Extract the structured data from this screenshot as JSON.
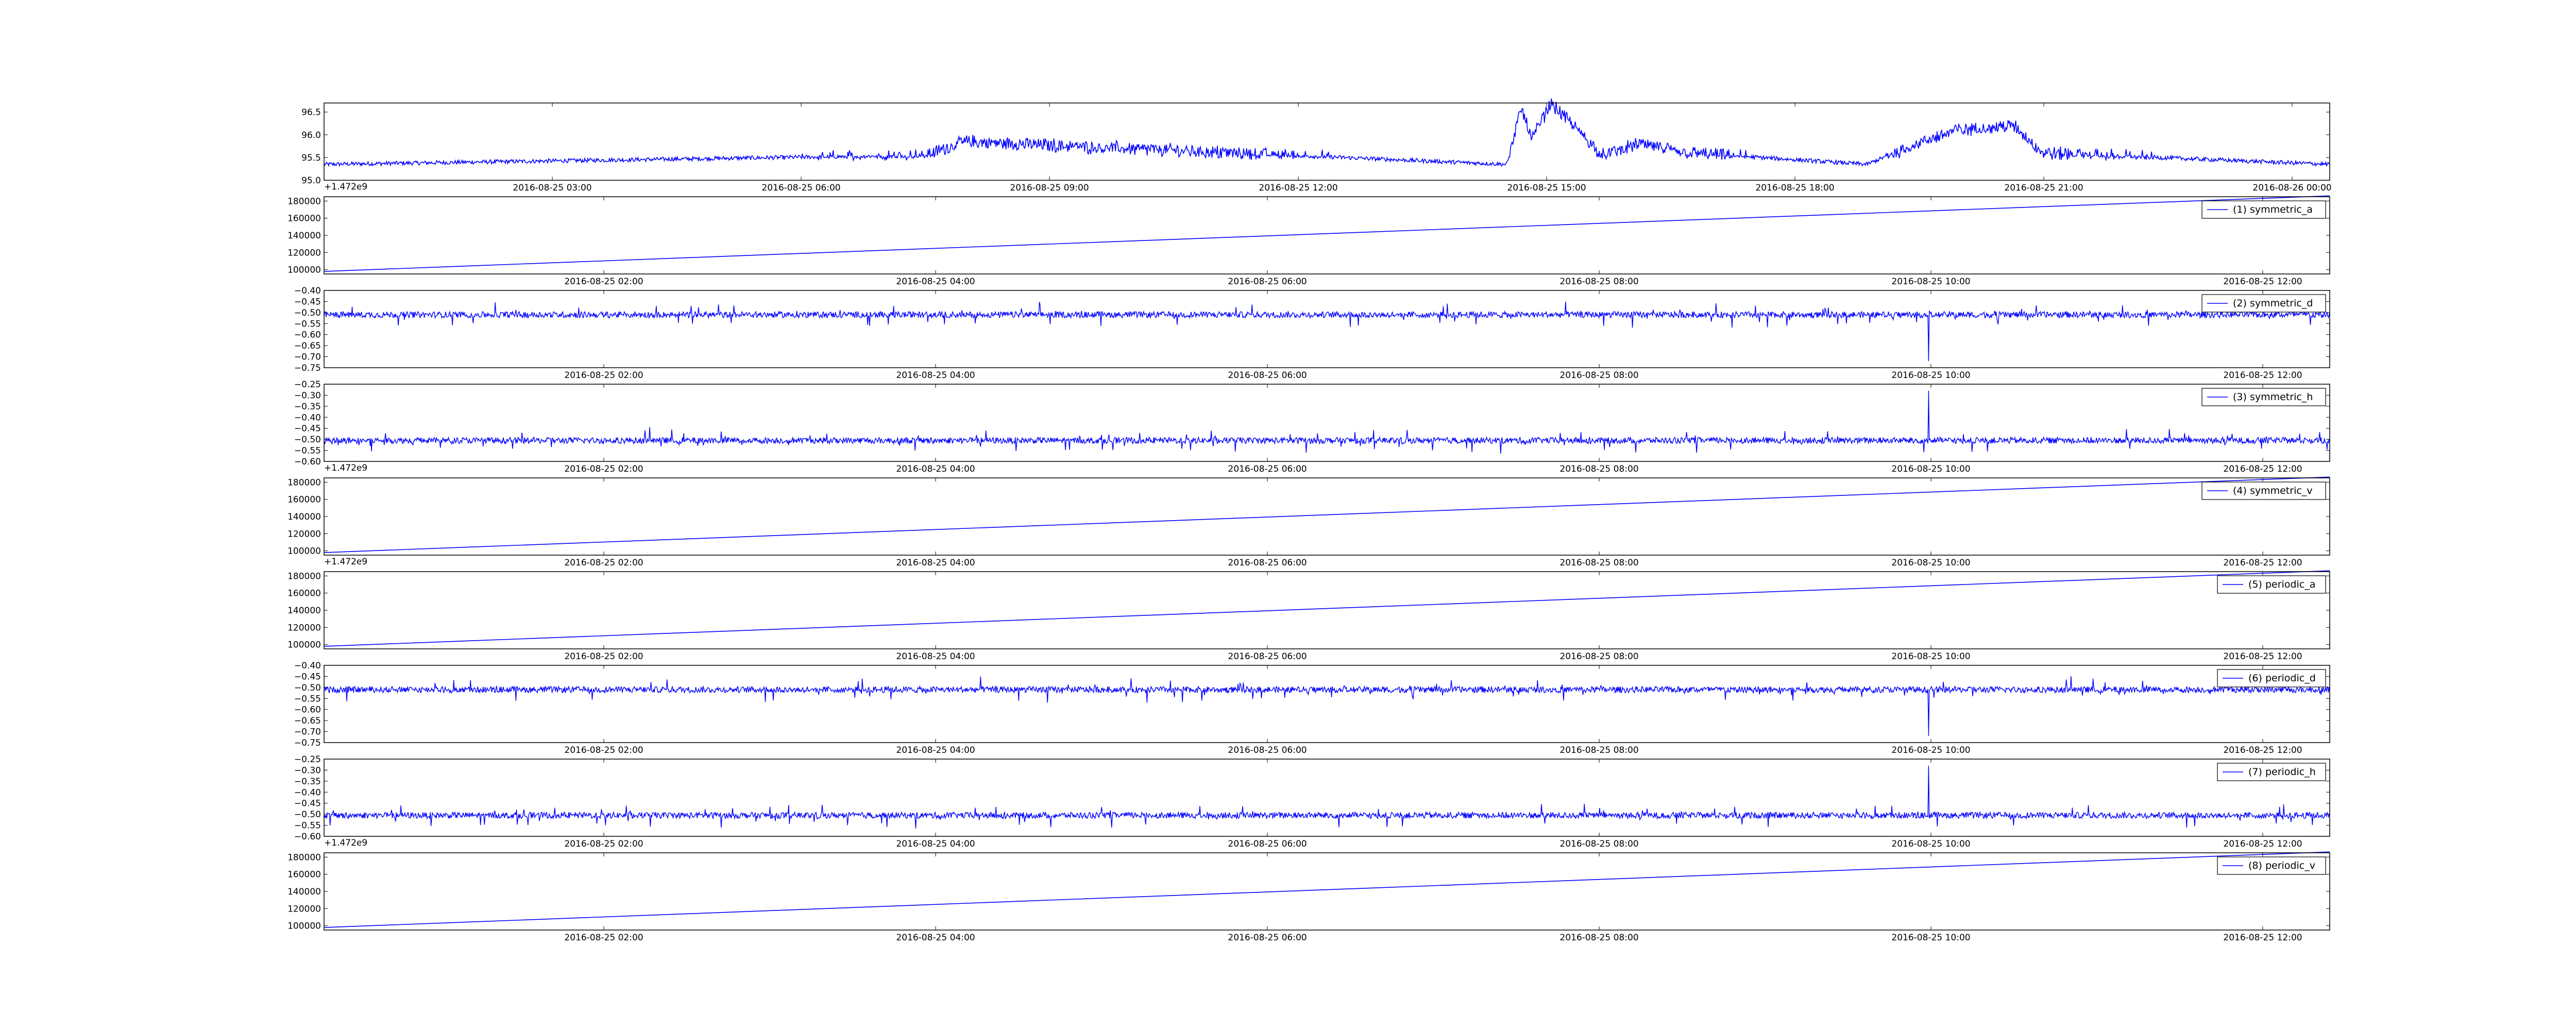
{
  "chart_data": [
    {
      "type": "line",
      "title": "",
      "xlabel": "",
      "ylabel": "",
      "ylim": [
        95.0,
        96.7
      ],
      "yticks": [
        "95.0",
        "95.5",
        "96.0",
        "96.5"
      ],
      "xticks": [
        "2016-08-25 03:00",
        "2016-08-25 06:00",
        "2016-08-25 09:00",
        "2016-08-25 12:00",
        "2016-08-25 15:00",
        "2016-08-25 18:00",
        "2016-08-25 21:00",
        "2016-08-26 00:00"
      ],
      "offset_text": "+1.472e9",
      "legend": "",
      "series": [
        {
          "color": "#0000ff",
          "baseline": 95.35,
          "x": [
            "2016-08-25 01:30",
            "2016-08-25 08:20",
            "2016-08-25 08:45",
            "2016-08-25 14:55",
            "2016-08-25 15:05",
            "2016-08-25 15:12",
            "2016-08-25 15:25",
            "2016-08-25 16:00",
            "2016-08-25 16:25",
            "2016-08-25 17:00",
            "2016-08-25 19:00",
            "2016-08-25 19:30",
            "2016-08-25 20:00",
            "2016-08-25 20:40",
            "2016-08-25 21:00",
            "2016-08-26 00:15"
          ],
          "values": [
            95.35,
            95.55,
            95.85,
            95.35,
            96.6,
            95.9,
            96.7,
            95.55,
            95.8,
            95.6,
            95.35,
            95.75,
            96.1,
            96.2,
            95.6,
            95.35
          ]
        }
      ]
    },
    {
      "type": "line",
      "ylim": [
        95000,
        185000
      ],
      "yticks": [
        "100000",
        "120000",
        "140000",
        "160000",
        "180000"
      ],
      "xticks": [
        "2016-08-25 02:00",
        "2016-08-25 04:00",
        "2016-08-25 06:00",
        "2016-08-25 08:00",
        "2016-08-25 10:00",
        "2016-08-25 12:00"
      ],
      "offset_text": "",
      "legend": "(1) symmetric_a",
      "legend_placement": "top-right",
      "series": [
        {
          "name": "(1) symmetric_a",
          "color": "#0000ff",
          "x": [
            "start",
            "end"
          ],
          "values": [
            98000,
            186000
          ]
        }
      ]
    },
    {
      "type": "line",
      "ylim": [
        -0.75,
        -0.4
      ],
      "yticks": [
        "−0.40",
        "−0.45",
        "−0.50",
        "−0.55",
        "−0.60",
        "−0.65",
        "−0.70",
        "−0.75"
      ],
      "xticks": [
        "2016-08-25 02:00",
        "2016-08-25 04:00",
        "2016-08-25 06:00",
        "2016-08-25 08:00",
        "2016-08-25 10:00",
        "2016-08-25 12:00"
      ],
      "offset_text": "",
      "legend": "(2) symmetric_d",
      "legend_placement": "top-right",
      "series": [
        {
          "name": "(2) symmetric_d",
          "color": "#0000ff",
          "baseline": -0.51,
          "spike_x": "2016-08-25 10:00",
          "spike_value": -0.72
        }
      ]
    },
    {
      "type": "line",
      "ylim": [
        -0.6,
        -0.25
      ],
      "yticks": [
        "−0.25",
        "−0.30",
        "−0.35",
        "−0.40",
        "−0.45",
        "−0.50",
        "−0.55",
        "−0.60"
      ],
      "xticks": [
        "2016-08-25 02:00",
        "2016-08-25 04:00",
        "2016-08-25 06:00",
        "2016-08-25 08:00",
        "2016-08-25 10:00",
        "2016-08-25 12:00"
      ],
      "offset_text": "+1.472e9",
      "legend": "(3) symmetric_h",
      "legend_placement": "top-right",
      "series": [
        {
          "name": "(3) symmetric_h",
          "color": "#0000ff",
          "baseline": -0.505,
          "spike_x": "2016-08-25 10:00",
          "spike_value": -0.28
        }
      ]
    },
    {
      "type": "line",
      "ylim": [
        95000,
        185000
      ],
      "yticks": [
        "100000",
        "120000",
        "140000",
        "160000",
        "180000"
      ],
      "xticks": [
        "2016-08-25 02:00",
        "2016-08-25 04:00",
        "2016-08-25 06:00",
        "2016-08-25 08:00",
        "2016-08-25 10:00",
        "2016-08-25 12:00"
      ],
      "offset_text": "+1.472e9",
      "legend": "(4) symmetric_v",
      "legend_placement": "top-right",
      "series": [
        {
          "name": "(4) symmetric_v",
          "color": "#0000ff",
          "x": [
            "start",
            "end"
          ],
          "values": [
            98000,
            186000
          ]
        }
      ]
    },
    {
      "type": "line",
      "ylim": [
        95000,
        185000
      ],
      "yticks": [
        "100000",
        "120000",
        "140000",
        "160000",
        "180000"
      ],
      "xticks": [
        "2016-08-25 02:00",
        "2016-08-25 04:00",
        "2016-08-25 06:00",
        "2016-08-25 08:00",
        "2016-08-25 10:00",
        "2016-08-25 12:00"
      ],
      "offset_text": "",
      "legend": "(5) periodic_a",
      "legend_placement": "top-right",
      "series": [
        {
          "name": "(5) periodic_a",
          "color": "#0000ff",
          "x": [
            "start",
            "end"
          ],
          "values": [
            98000,
            186000
          ]
        }
      ]
    },
    {
      "type": "line",
      "ylim": [
        -0.75,
        -0.4
      ],
      "yticks": [
        "−0.40",
        "−0.45",
        "−0.50",
        "−0.55",
        "−0.60",
        "−0.65",
        "−0.70",
        "−0.75"
      ],
      "xticks": [
        "2016-08-25 02:00",
        "2016-08-25 04:00",
        "2016-08-25 06:00",
        "2016-08-25 08:00",
        "2016-08-25 10:00",
        "2016-08-25 12:00"
      ],
      "offset_text": "",
      "legend": "(6) periodic_d",
      "legend_placement": "top-right",
      "series": [
        {
          "name": "(6) periodic_d",
          "color": "#0000ff",
          "baseline": -0.51,
          "spike_x": "2016-08-25 10:00",
          "spike_value": -0.72
        }
      ]
    },
    {
      "type": "line",
      "ylim": [
        -0.6,
        -0.25
      ],
      "yticks": [
        "−0.25",
        "−0.30",
        "−0.35",
        "−0.40",
        "−0.45",
        "−0.50",
        "−0.55",
        "−0.60"
      ],
      "xticks": [
        "2016-08-25 02:00",
        "2016-08-25 04:00",
        "2016-08-25 06:00",
        "2016-08-25 08:00",
        "2016-08-25 10:00",
        "2016-08-25 12:00"
      ],
      "offset_text": "+1.472e9",
      "legend": "(7) periodic_h",
      "legend_placement": "top-right",
      "series": [
        {
          "name": "(7) periodic_h",
          "color": "#0000ff",
          "baseline": -0.505,
          "spike_x": "2016-08-25 10:00",
          "spike_value": -0.28
        }
      ]
    },
    {
      "type": "line",
      "ylim": [
        95000,
        185000
      ],
      "yticks": [
        "100000",
        "120000",
        "140000",
        "160000",
        "180000"
      ],
      "xticks": [
        "2016-08-25 02:00",
        "2016-08-25 04:00",
        "2016-08-25 06:00",
        "2016-08-25 08:00",
        "2016-08-25 10:00",
        "2016-08-25 12:00"
      ],
      "offset_text": "",
      "legend": "(8) periodic_v",
      "legend_placement": "top-right",
      "series": [
        {
          "name": "(8) periodic_v",
          "color": "#0000ff",
          "x": [
            "start",
            "end"
          ],
          "values": [
            98000,
            186000
          ]
        }
      ]
    }
  ]
}
